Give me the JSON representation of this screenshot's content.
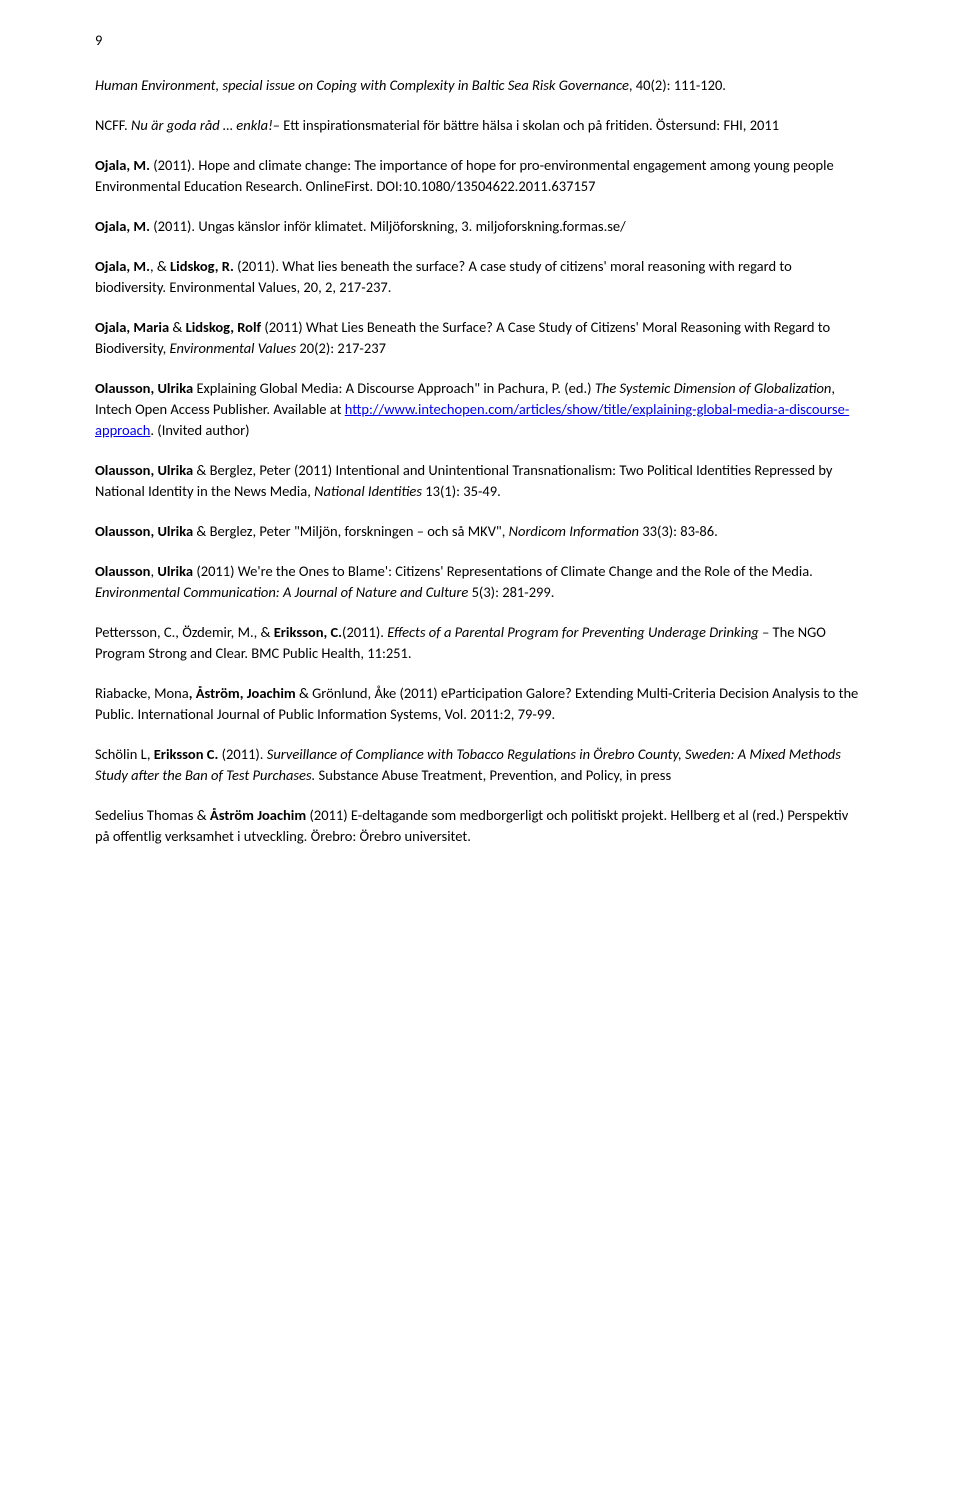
{
  "page_number": "9",
  "entries": [
    {
      "segments": [
        {
          "text": "Human Environment, special issue on Coping with Complexity in Baltic Sea Risk Governance",
          "style": "italic"
        },
        {
          "text": ", 40(2): 111-120."
        }
      ]
    },
    {
      "segments": [
        {
          "text": "NCFF. "
        },
        {
          "text": "Nu är goda råd … enkla!",
          "style": "italic"
        },
        {
          "text": "– Ett inspirationsmaterial för bättre hälsa i skolan och på fritiden."
        },
        {
          "text": " Östersund: FHI, 2011"
        }
      ]
    },
    {
      "segments": [
        {
          "text": "Ojala, M.",
          "style": "bold"
        },
        {
          "text": " (2011). Hope and climate change: The importance of hope for pro-environmental engagement among young people Environmental Education Research. OnlineFirst. DOI:10.1080/13504622.2011.637157"
        }
      ]
    },
    {
      "segments": [
        {
          "text": "Ojala, M.",
          "style": "bold"
        },
        {
          "text": " (2011). Ungas känslor inför klimatet. Miljöforskning, 3. miljoforskning.formas.se/"
        }
      ]
    },
    {
      "segments": [
        {
          "text": "Ojala, M.",
          "style": "bold"
        },
        {
          "text": ", & "
        },
        {
          "text": "Lidskog, R.",
          "style": "bold"
        },
        {
          "text": " (2011). What lies beneath the surface? A case study of citizens' moral reasoning with regard to biodiversity. Environmental Values, 20, 2, 217-237."
        }
      ]
    },
    {
      "segments": [
        {
          "text": "Ojala, Maria",
          "style": "bold"
        },
        {
          "text": " & "
        },
        {
          "text": "Lidskog, Rolf",
          "style": "bold"
        },
        {
          "text": " (2011) What Lies Beneath the Surface? A Case Study of Citizens' Moral Reasoning with Regard to Biodiversity, "
        },
        {
          "text": "Environmental Values",
          "style": "italic"
        },
        {
          "text": " 20(2): 217-237"
        }
      ]
    },
    {
      "segments": [
        {
          "text": "Olausson, Ulrika ",
          "style": "bold"
        },
        {
          "text": " Explaining Global Media: A Discourse Approach\" in Pachura, P. (ed.) "
        },
        {
          "text": "The Systemic Dimension of Globalization",
          "style": "italic"
        },
        {
          "text": ", Intech Open Access Publisher. Available at "
        },
        {
          "text": "http://www.intechopen.com/articles/show/title/explaining-global-media-a-discourse-approach",
          "style": "link"
        },
        {
          "text": ". (Invited author)"
        }
      ]
    },
    {
      "segments": [
        {
          "text": "Olausson, Ulrika",
          "style": "bold"
        },
        {
          "text": " & Berglez, Peter (2011) Intentional and Unintentional Transnationalism: Two Political Identities Repressed by National Identity in the News Media, "
        },
        {
          "text": "National Identities",
          "style": "italic"
        },
        {
          "text": " 13(1): 35-49."
        }
      ]
    },
    {
      "segments": [
        {
          "text": "Olausson, Ulrika",
          "style": "bold"
        },
        {
          "text": " & Berglez, Peter \"Miljön, forskningen – och så MKV\", "
        },
        {
          "text": "Nordicom Information",
          "style": "italic"
        },
        {
          "text": " 33(3): 83-86."
        }
      ]
    },
    {
      "segments": [
        {
          "text": "Olausson",
          "style": "bold"
        },
        {
          "text": ", "
        },
        {
          "text": "Ulrika",
          "style": "bold"
        },
        {
          "text": " (2011) We're the Ones to Blame': Citizens' Representations of Climate Change and the Role of the Media. "
        },
        {
          "text": "Environmental Communication: A Journal of Nature and Culture",
          "style": "italic"
        },
        {
          "text": " 5(3): 281-299."
        }
      ]
    },
    {
      "segments": [
        {
          "text": "Pettersson, C., Özdemir, M., & "
        },
        {
          "text": "Eriksson, C.",
          "style": "bold"
        },
        {
          "text": "(2011). "
        },
        {
          "text": "Effects of a Parental Program for Preventing Underage Drinking – ",
          "style": "italic"
        },
        {
          "text": "The NGO Program Strong and Clear. BMC Public Health, 11:251."
        }
      ]
    },
    {
      "segments": [
        {
          "text": "Riabacke, Mona"
        },
        {
          "text": ", Åström, Joachim",
          "style": "bold"
        },
        {
          "text": " & Grönlund, Åke (2011) eParticipation Galore? Extending Multi-Criteria Decision Analysis to the Public. International Journal of Public Information Systems, Vol. 2011:2, 79-99."
        }
      ]
    },
    {
      "segments": [
        {
          "text": "Schölin L, "
        },
        {
          "text": "Eriksson C.",
          "style": "bold"
        },
        {
          "text": " (2011). "
        },
        {
          "text": "Surveillance of Compliance with Tobacco Regulations in Örebro County, Sweden: A Mixed Methods Study after the Ban of Test Purchases. ",
          "style": "italic"
        },
        {
          "text": "Substance Abuse Treatment, Prevention, and Policy, in press"
        }
      ]
    },
    {
      "segments": [
        {
          "text": "Sedelius Thomas & "
        },
        {
          "text": "Åström Joachim",
          "style": "bold"
        },
        {
          "text": " (2011) E-deltagande som medborgerligt och politiskt projekt. Hellberg et al (red.) Perspektiv på offentlig verksamhet i utveckling. Örebro: Örebro universitet."
        }
      ]
    }
  ]
}
